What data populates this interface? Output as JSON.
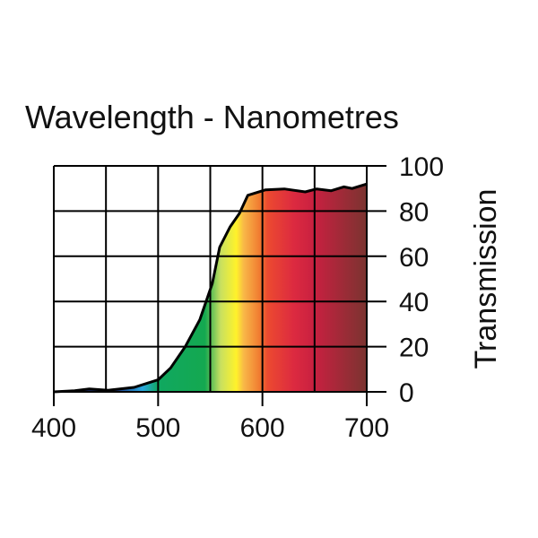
{
  "chart_data": {
    "type": "area",
    "title": "Wavelength - Nanometres",
    "xlabel": "",
    "ylabel": "Transmission",
    "xlim": [
      400,
      700
    ],
    "ylim": [
      0,
      100
    ],
    "grid": true,
    "x_ticks": [
      400,
      500,
      600,
      700
    ],
    "x_grid": [
      400,
      450,
      500,
      550,
      600,
      650,
      700
    ],
    "y_ticks": [
      0,
      20,
      40,
      60,
      80,
      100
    ],
    "y_axis_side": "right",
    "series": [
      {
        "name": "Transmission",
        "x": [
          400,
          420,
          434,
          452,
          477,
          500,
          512,
          526,
          540,
          552,
          559,
          569,
          578,
          586,
          603,
          621,
          641,
          652,
          666,
          678,
          686,
          700
        ],
        "y": [
          0,
          0.5,
          1.3,
          0.7,
          2,
          5.3,
          10.6,
          20,
          32,
          48,
          64,
          73,
          79,
          87,
          89.4,
          89.8,
          88.5,
          89.8,
          89,
          90.7,
          90,
          92
        ]
      }
    ],
    "fill_spectrum": [
      {
        "nm": 400,
        "color": "#1a1a4a"
      },
      {
        "nm": 460,
        "color": "#1a3a8a"
      },
      {
        "nm": 485,
        "color": "#2aa8e0"
      },
      {
        "nm": 500,
        "color": "#10a860"
      },
      {
        "nm": 545,
        "color": "#14a850"
      },
      {
        "nm": 560,
        "color": "#c8e060"
      },
      {
        "nm": 575,
        "color": "#fff22a"
      },
      {
        "nm": 582,
        "color": "#f8b848"
      },
      {
        "nm": 598,
        "color": "#f07830"
      },
      {
        "nm": 605,
        "color": "#ec4a30"
      },
      {
        "nm": 630,
        "color": "#dc2a40"
      },
      {
        "nm": 650,
        "color": "#c82040"
      },
      {
        "nm": 700,
        "color": "#7a3430"
      }
    ]
  }
}
